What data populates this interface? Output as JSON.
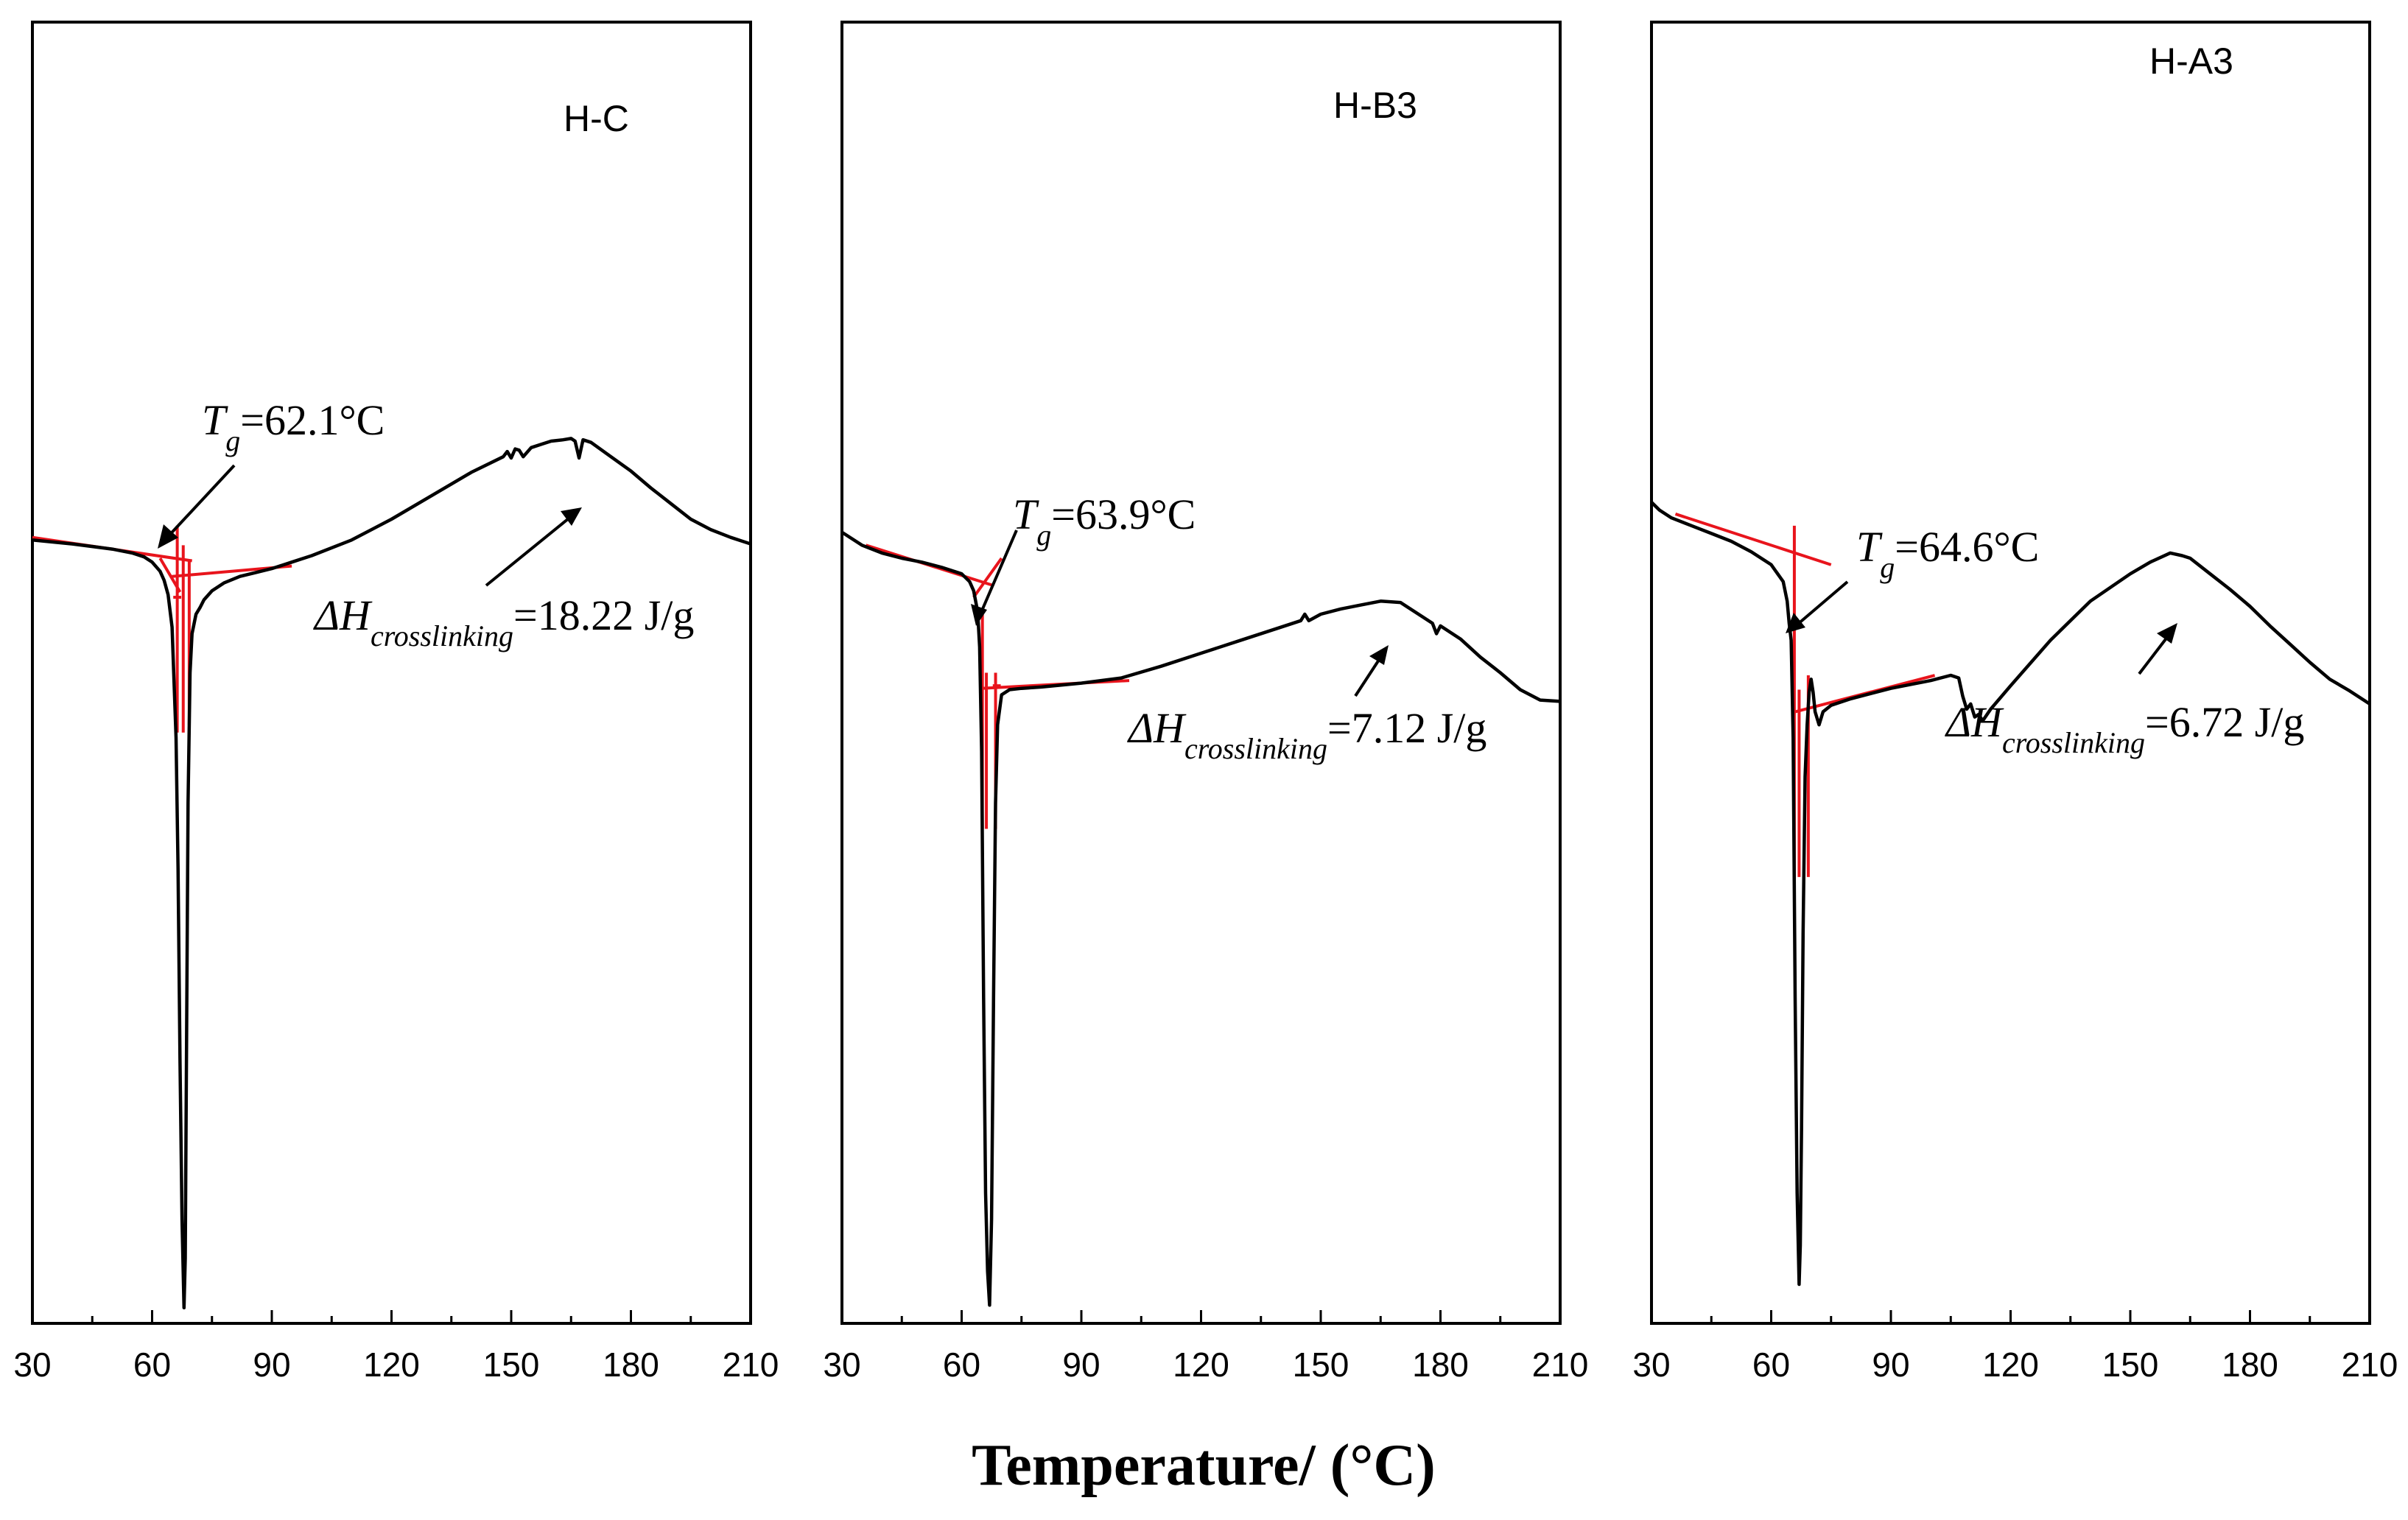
{
  "figure": {
    "xlabel": "Temperature/ (°C)"
  },
  "colors": {
    "curve": "#000000",
    "tangent": "#e8141c",
    "axis": "#000000",
    "background": "#ffffff"
  },
  "chart_data": [
    {
      "type": "line",
      "title": "H-C",
      "xlabel": "Temperature/ (°C)",
      "ylabel": "",
      "xlim": [
        30,
        210
      ],
      "ylim": [
        0,
        100
      ],
      "xticks": [
        "30",
        "60",
        "90",
        "120",
        "150",
        "180",
        "210"
      ],
      "series": [
        {
          "name": "H-C",
          "x": [
            30,
            40,
            50,
            55,
            58,
            60,
            62,
            63,
            64,
            65,
            66,
            66.5,
            67,
            67.5,
            68,
            68.3,
            68.6,
            69,
            69.5,
            70,
            71,
            72,
            73,
            75,
            78,
            82,
            86,
            90,
            95,
            100,
            110,
            120,
            130,
            140,
            148,
            149,
            150,
            151,
            152,
            153,
            155,
            158,
            160,
            163,
            165,
            166,
            167,
            168,
            170,
            175,
            180,
            185,
            190,
            195,
            200,
            205,
            210
          ],
          "y": [
            60.2,
            59.9,
            59.5,
            59.2,
            58.9,
            58.5,
            57.8,
            57.1,
            56.0,
            53.5,
            45.0,
            35.0,
            20.0,
            8.0,
            1.2,
            5.0,
            20.0,
            40.0,
            50.0,
            53.0,
            54.5,
            55.0,
            55.6,
            56.3,
            56.9,
            57.4,
            57.7,
            58.0,
            58.5,
            59.0,
            60.2,
            61.8,
            63.6,
            65.4,
            66.6,
            67.0,
            66.5,
            67.2,
            67.1,
            66.6,
            67.3,
            67.6,
            67.8,
            67.9,
            68.0,
            67.8,
            66.5,
            67.9,
            67.7,
            66.6,
            65.5,
            64.2,
            63.0,
            61.8,
            61.0,
            60.4,
            59.9
          ]
        }
      ],
      "tangents": [
        {
          "x": [
            30,
            70
          ],
          "y": [
            60.4,
            58.6
          ]
        },
        {
          "x": [
            65,
            95
          ],
          "y": [
            57.4,
            58.2
          ]
        },
        {
          "x": [
            62,
            67
          ],
          "y": [
            58.8,
            56.2
          ]
        },
        {
          "x": [
            66.3,
            66.3
          ],
          "y": [
            45.4,
            61.3
          ]
        },
        {
          "x": [
            67.8,
            67.8
          ],
          "y": [
            45.4,
            59.8
          ]
        },
        {
          "x": [
            69.3,
            69.3
          ],
          "y": [
            46.0,
            58.6
          ]
        },
        {
          "x": [
            65.3,
            67.3
          ],
          "y": [
            55.8,
            55.8
          ]
        }
      ],
      "annotations": {
        "tg_symbol": "T",
        "tg_sub": "g",
        "tg_value": "=62.1°C",
        "dh_symbol": "ΔH",
        "dh_sub": "crosslinking",
        "dh_value": "=18.22 J/g"
      }
    },
    {
      "type": "line",
      "title": "H-B3",
      "xlabel": "Temperature/ (°C)",
      "ylabel": "",
      "xlim": [
        30,
        210
      ],
      "ylim": [
        0,
        100
      ],
      "xticks": [
        "30",
        "60",
        "90",
        "120",
        "150",
        "180",
        "210"
      ],
      "series": [
        {
          "name": "H-B3",
          "x": [
            30,
            35,
            40,
            45,
            50,
            55,
            60,
            62,
            63,
            64,
            64.5,
            65,
            65.5,
            66,
            66.5,
            67,
            67.5,
            68,
            68.5,
            69,
            70,
            72,
            75,
            80,
            90,
            100,
            110,
            120,
            130,
            140,
            145,
            146,
            147,
            150,
            155,
            160,
            165,
            170,
            175,
            178,
            179,
            180,
            185,
            190,
            195,
            200,
            205,
            210
          ],
          "y": [
            60.8,
            59.8,
            59.2,
            58.8,
            58.5,
            58.1,
            57.6,
            57.0,
            56.3,
            54.7,
            52.0,
            44.0,
            25.0,
            10.0,
            4.0,
            1.4,
            8.0,
            25.0,
            40.0,
            46.0,
            48.3,
            48.7,
            48.8,
            48.9,
            49.2,
            49.6,
            50.5,
            51.5,
            52.5,
            53.5,
            54.0,
            54.5,
            54.0,
            54.5,
            54.9,
            55.2,
            55.5,
            55.4,
            54.4,
            53.8,
            53.0,
            53.6,
            52.6,
            51.2,
            50.0,
            48.7,
            47.9,
            47.8
          ]
        }
      ],
      "tangents": [
        {
          "x": [
            36,
            68
          ],
          "y": [
            59.8,
            56.7
          ]
        },
        {
          "x": [
            65,
            102
          ],
          "y": [
            48.8,
            49.4
          ]
        },
        {
          "x": [
            63,
            70
          ],
          "y": [
            55.8,
            58.8
          ]
        },
        {
          "x": [
            65.2,
            65.2
          ],
          "y": [
            38.0,
            54.7
          ]
        },
        {
          "x": [
            66.2,
            66.2
          ],
          "y": [
            38.0,
            50.0
          ]
        },
        {
          "x": [
            68.5,
            68.5
          ],
          "y": [
            38.0,
            50.0
          ]
        },
        {
          "x": [
            67.8,
            69.8
          ],
          "y": [
            49.0,
            49.0
          ]
        }
      ],
      "annotations": {
        "tg_symbol": "T",
        "tg_sub": "g",
        "tg_value": "=63.9°C",
        "dh_symbol": "ΔH",
        "dh_sub": "crosslinking",
        "dh_value": "=7.12 J/g"
      }
    },
    {
      "type": "line",
      "title": "H-A3",
      "xlabel": "Temperature/ (°C)",
      "ylabel": "",
      "xlim": [
        30,
        210
      ],
      "ylim": [
        0,
        100
      ],
      "xticks": [
        "30",
        "60",
        "90",
        "120",
        "150",
        "180",
        "210"
      ],
      "series": [
        {
          "name": "H-A3",
          "x": [
            30,
            32,
            35,
            40,
            45,
            50,
            55,
            60,
            63,
            64,
            64.5,
            65,
            65.5,
            66,
            66.5,
            67,
            67.3,
            67.6,
            68,
            68.5,
            69,
            69.5,
            70,
            70.5,
            71,
            72,
            73,
            75,
            80,
            90,
            100,
            105,
            107,
            108,
            109,
            110,
            111,
            112,
            113,
            115,
            120,
            130,
            140,
            150,
            155,
            160,
            163,
            165,
            170,
            175,
            180,
            185,
            190,
            195,
            200,
            205,
            210
          ],
          "y": [
            63.1,
            62.5,
            61.9,
            61.3,
            60.7,
            60.1,
            59.3,
            58.3,
            57.0,
            55.5,
            53.8,
            52.5,
            45.0,
            25.0,
            10.0,
            3.0,
            6.0,
            15.0,
            30.0,
            42.0,
            46.0,
            48.5,
            49.5,
            48.5,
            47.0,
            46.0,
            47.0,
            47.5,
            48.0,
            48.8,
            49.4,
            49.8,
            49.6,
            48.2,
            47.2,
            47.6,
            46.6,
            46.8,
            46.3,
            47.2,
            49.0,
            52.5,
            55.5,
            57.6,
            58.5,
            59.2,
            59.0,
            58.8,
            57.6,
            56.4,
            55.1,
            53.6,
            52.2,
            50.8,
            49.5,
            48.6,
            47.6
          ]
        }
      ],
      "tangents": [
        {
          "x": [
            36,
            75
          ],
          "y": [
            62.2,
            58.3
          ]
        },
        {
          "x": [
            66,
            101
          ],
          "y": [
            47.0,
            49.8
          ]
        },
        {
          "x": [
            65.8,
            65.8
          ],
          "y": [
            34.3,
            61.3
          ]
        },
        {
          "x": [
            67.0,
            67.0
          ],
          "y": [
            34.3,
            48.7
          ]
        },
        {
          "x": [
            69.3,
            69.3
          ],
          "y": [
            34.3,
            49.8
          ]
        }
      ],
      "annotations": {
        "tg_symbol": "T",
        "tg_sub": "g",
        "tg_value": "=64.6°C",
        "dh_symbol": "ΔH",
        "dh_sub": "crosslinking",
        "dh_value": "=6.72 J/g"
      }
    }
  ]
}
